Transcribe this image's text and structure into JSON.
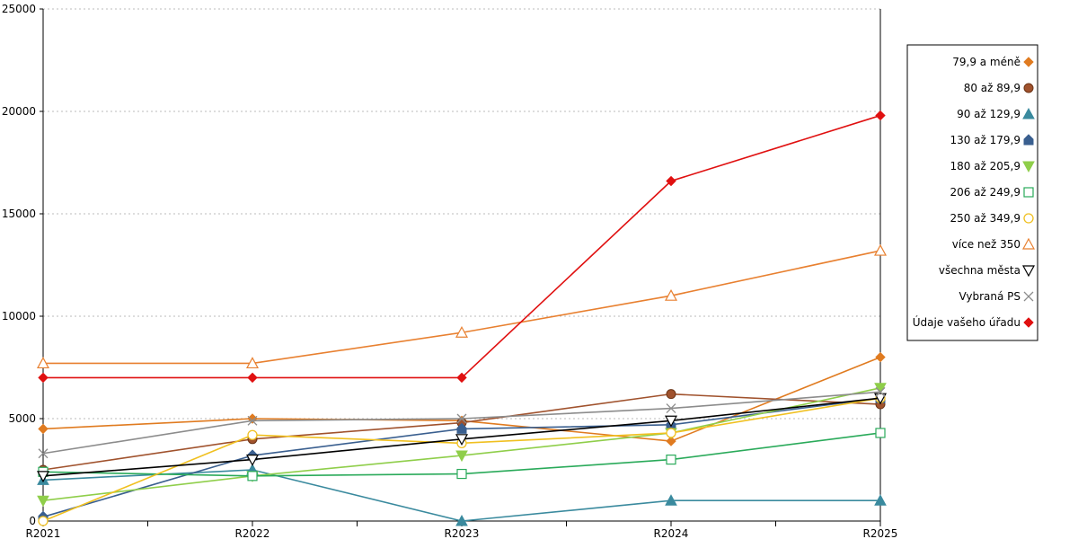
{
  "chart_data": {
    "type": "line",
    "title": "",
    "xlabel": "",
    "ylabel": "",
    "categories": [
      "R2021",
      "R2022",
      "R2023",
      "R2024",
      "R2025"
    ],
    "ylim": [
      0,
      25000
    ],
    "yticks": [
      0,
      5000,
      10000,
      15000,
      20000,
      25000
    ],
    "grid": "horizontal dotted",
    "legend_position": "right",
    "series": [
      {
        "name": "79,9 a méně",
        "color": "#e07b20",
        "marker": "diamond",
        "values": [
          4500,
          5000,
          4900,
          3900,
          8000
        ]
      },
      {
        "name": "80 až 89,9",
        "color": "#a0522d",
        "marker": "circle",
        "values": [
          2500,
          4000,
          4800,
          6200,
          5700
        ]
      },
      {
        "name": "90 až 129,9",
        "color": "#3a8a9e",
        "marker": "triangle",
        "values": [
          2000,
          2500,
          0,
          1000,
          1000
        ]
      },
      {
        "name": "130 až 179,9",
        "color": "#3a5f8f",
        "marker": "house",
        "values": [
          200,
          3200,
          4500,
          4700,
          6000
        ]
      },
      {
        "name": "180 až 205,9",
        "color": "#8fce4a",
        "marker": "triangle-down",
        "values": [
          1000,
          2200,
          3200,
          4300,
          6500
        ]
      },
      {
        "name": "206 až 249,9",
        "color": "#2aaa5a",
        "marker": "square-open",
        "values": [
          2400,
          2200,
          2300,
          3000,
          4300
        ]
      },
      {
        "name": "250 až 349,9",
        "color": "#f0c020",
        "marker": "circle-open",
        "values": [
          0,
          4200,
          3800,
          4300,
          6000
        ]
      },
      {
        "name": "více než 350",
        "color": "#e88030",
        "marker": "triangle-open",
        "values": [
          7700,
          7700,
          9200,
          11000,
          13200
        ]
      },
      {
        "name": "všechna města",
        "color": "#000000",
        "marker": "triangle-down-open",
        "values": [
          2200,
          3000,
          4000,
          4900,
          6000
        ]
      },
      {
        "name": "Vybraná PS",
        "color": "#8c8c8c",
        "marker": "x",
        "values": [
          3300,
          4900,
          5000,
          5500,
          6300
        ]
      },
      {
        "name": "Údaje vašeho úřadu",
        "color": "#e01010",
        "marker": "diamond",
        "values": [
          7000,
          7000,
          7000,
          16600,
          19800
        ]
      }
    ]
  }
}
